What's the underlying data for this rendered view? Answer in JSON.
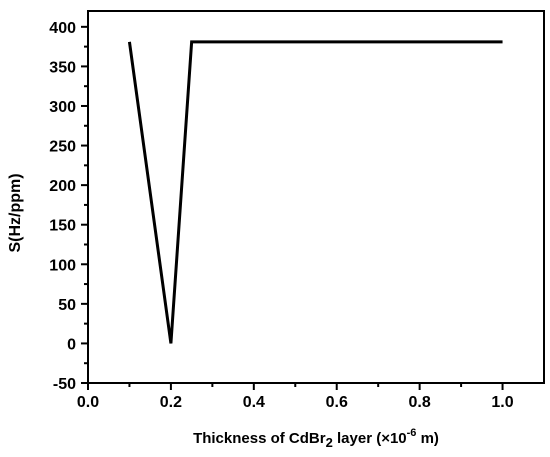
{
  "chart_data": {
    "type": "line",
    "title": "",
    "xlabel": {
      "prefix": "Thickness of CdBr",
      "subscript": "2",
      "middle": " layer (×10",
      "superscript": "-6",
      "suffix": " m)"
    },
    "ylabel": "S(Hz/ppm)",
    "xlim": [
      0.0,
      1.1
    ],
    "ylim": [
      -50,
      420
    ],
    "xticks": [
      0.0,
      0.2,
      0.4,
      0.6,
      0.8,
      1.0
    ],
    "xtick_labels": [
      "0.0",
      "0.2",
      "0.4",
      "0.6",
      "0.8",
      "1.0"
    ],
    "yticks": [
      -50,
      0,
      50,
      100,
      150,
      200,
      250,
      300,
      350,
      400
    ],
    "ytick_labels": [
      "-50",
      "0",
      "50",
      "100",
      "150",
      "200",
      "250",
      "300",
      "350",
      "400"
    ],
    "grid": false,
    "series": [
      {
        "x": [
          0.1,
          0.2,
          0.25,
          1.0
        ],
        "y": [
          381,
          0,
          381,
          381
        ],
        "color": "#000000"
      }
    ]
  }
}
